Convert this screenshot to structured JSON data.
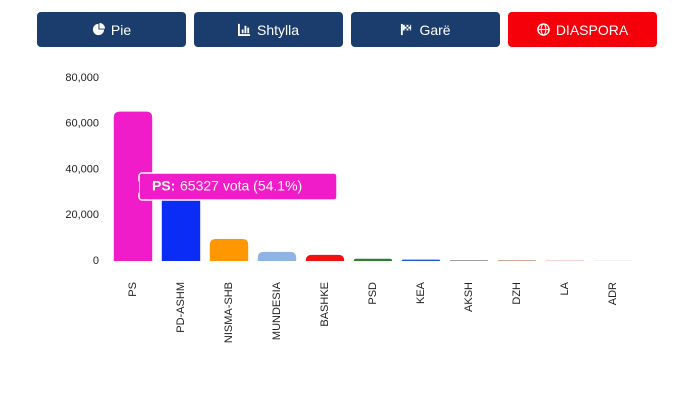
{
  "buttons": [
    {
      "label": "Pie"
    },
    {
      "label": "Shtylla"
    },
    {
      "label": "Garë"
    },
    {
      "label": "DIASPORA"
    }
  ],
  "chart_data": {
    "type": "bar",
    "categories": [
      "PS",
      "PD-ASHM",
      "NISMA-SHB",
      "MUNDESIA",
      "BASHKE",
      "PSD",
      "KEA",
      "AKSH",
      "DZH",
      "LA",
      "ADR"
    ],
    "values": [
      65327,
      30000,
      9600,
      4000,
      2700,
      1000,
      600,
      300,
      200,
      150,
      100
    ],
    "colors": [
      "#f01bc9",
      "#0a2cf5",
      "#ff9800",
      "#8fb4e3",
      "#f21010",
      "#2e7d32",
      "#1e56d6",
      "#666666",
      "#a0522d",
      "#ee8888",
      "#cccccc"
    ],
    "ylim": [
      0,
      80000
    ],
    "yticks": [
      0,
      {
        "value": 20000,
        "label": "20,000"
      },
      {
        "value": 40000,
        "label": "40,000"
      },
      {
        "value": 60000,
        "label": "60,000"
      },
      {
        "value": 80000,
        "label": "80,000"
      }
    ],
    "tooltip": {
      "label": "PS:",
      "text": "65327 vota (54.1%)"
    }
  }
}
